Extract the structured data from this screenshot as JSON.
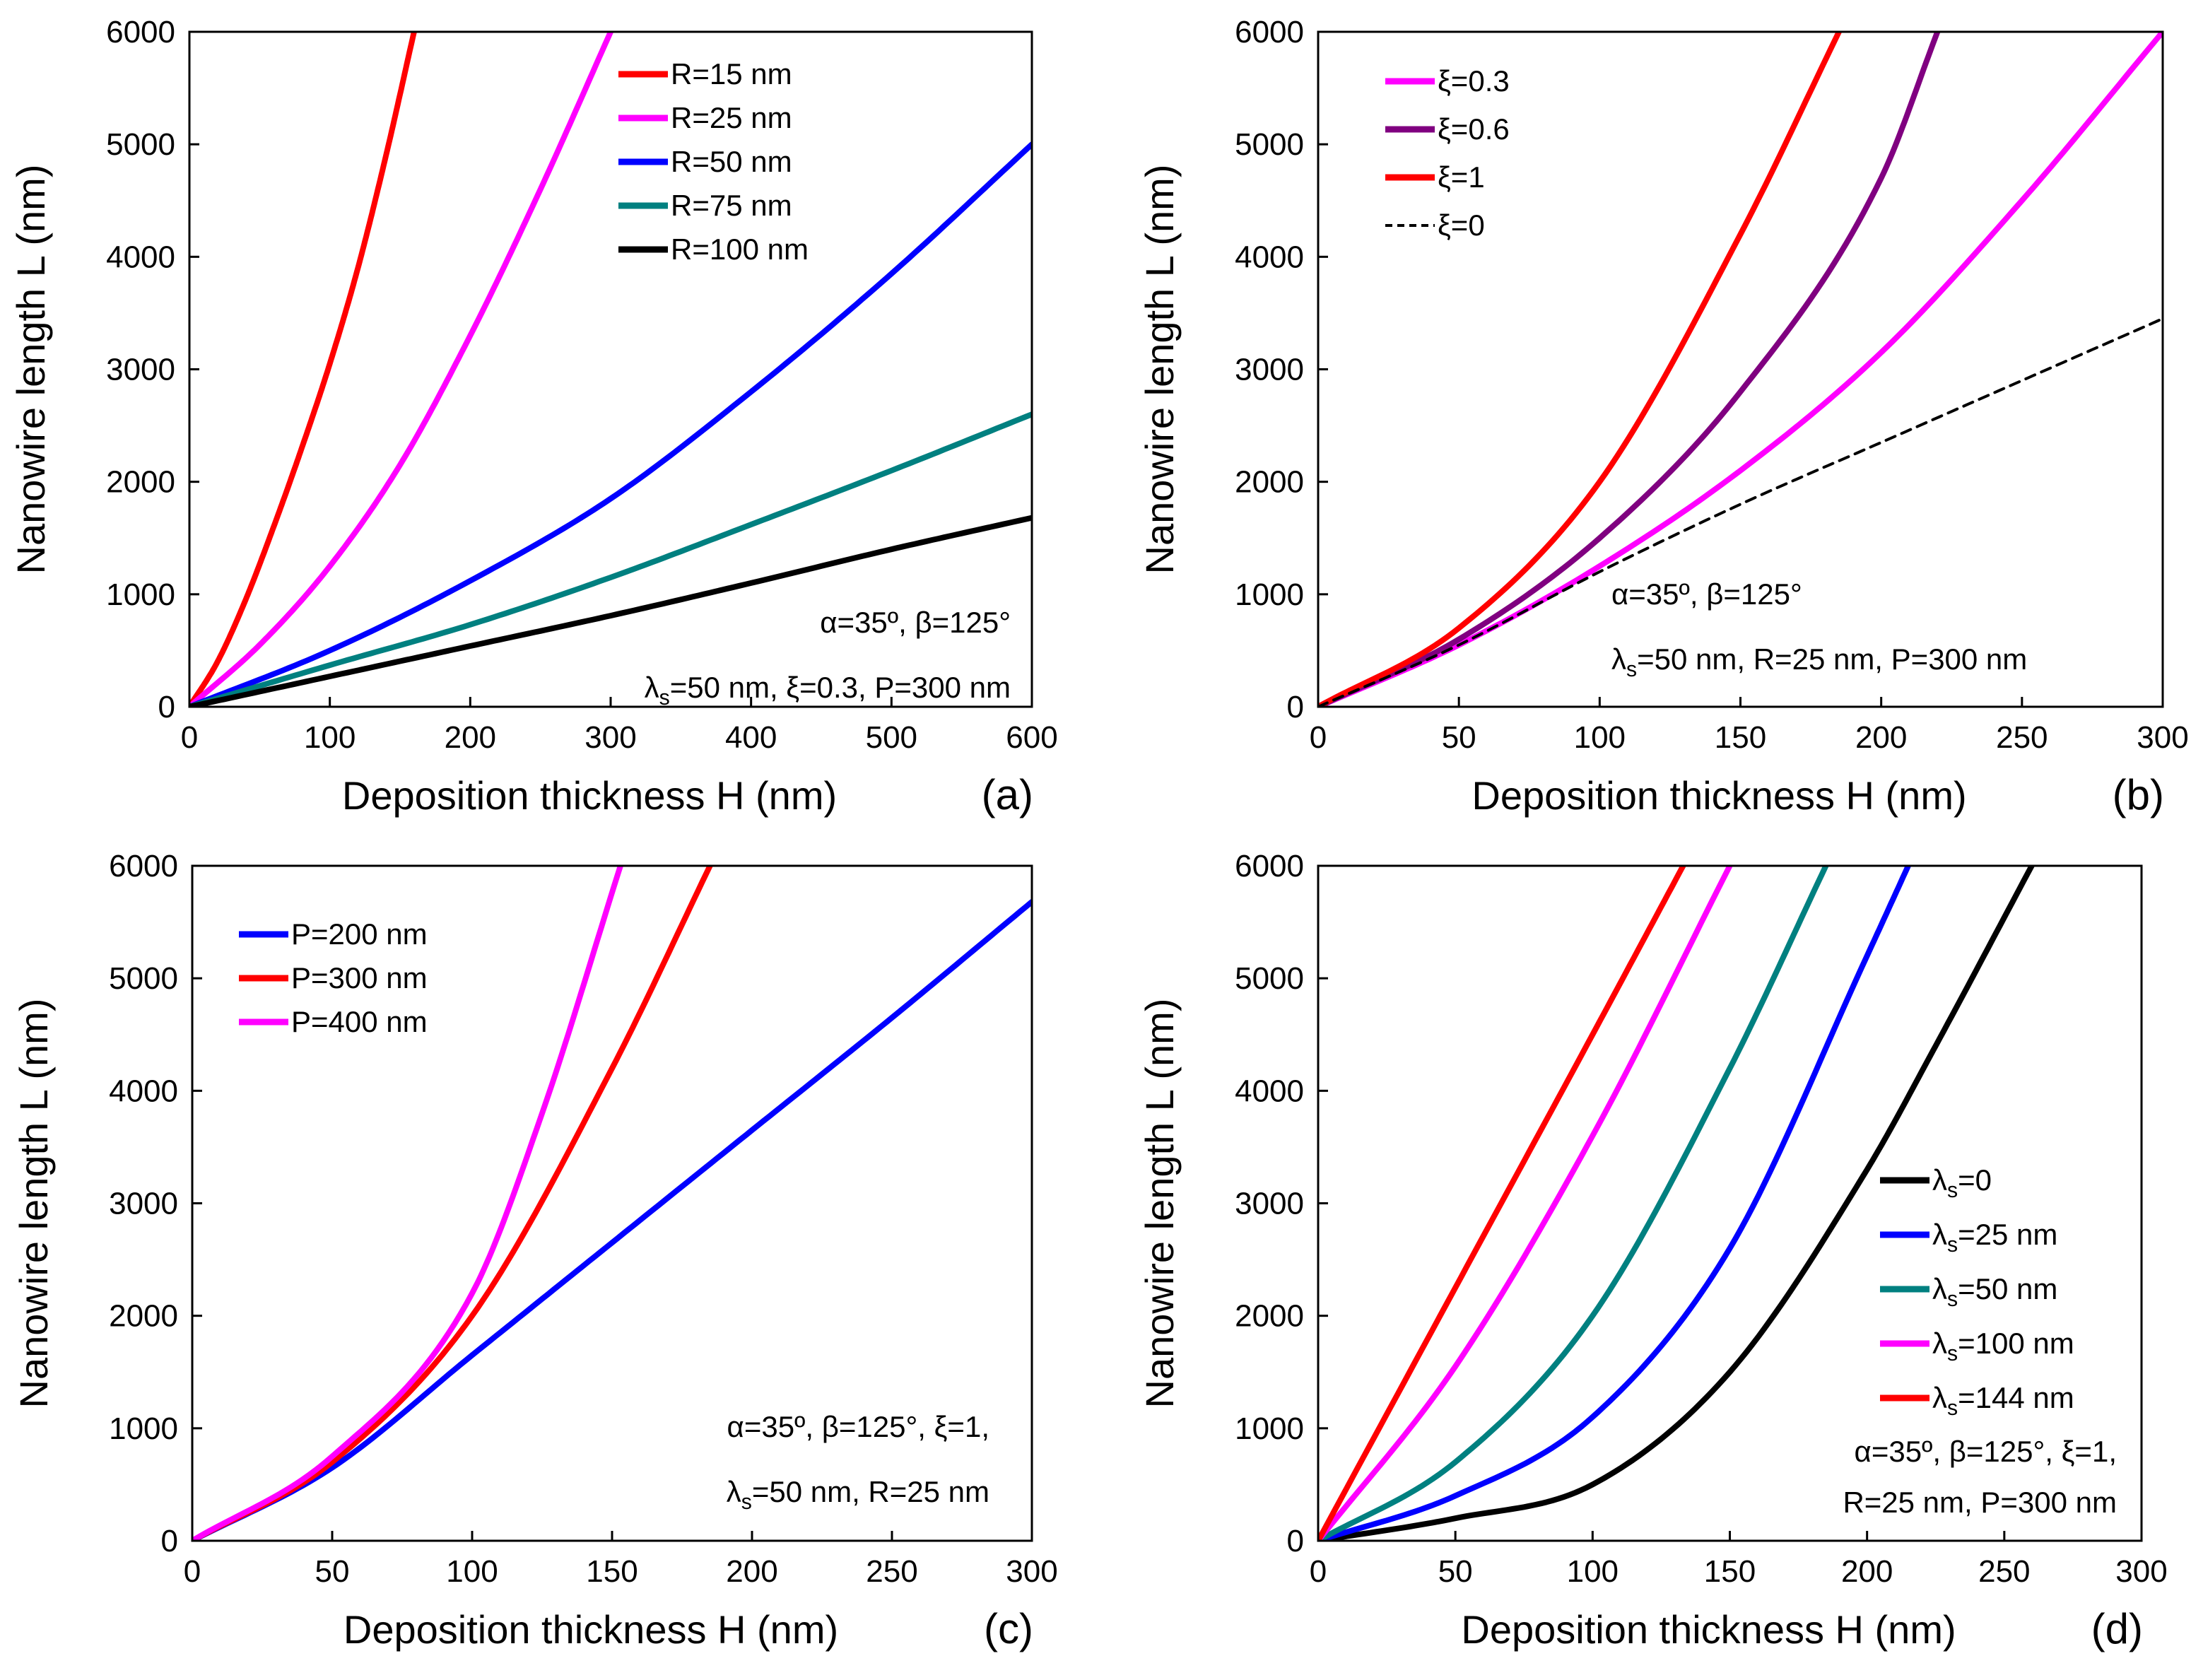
{
  "chart_data": [
    {
      "type": "line",
      "panel_label": "(a)",
      "xlabel": "Deposition thickness H (nm)",
      "ylabel": "Nanowire length L (nm)",
      "xlim": [
        0,
        600
      ],
      "ylim": [
        0,
        6000
      ],
      "xticks": [
        0,
        100,
        200,
        300,
        400,
        500,
        600
      ],
      "yticks": [
        0,
        1000,
        2000,
        3000,
        4000,
        5000,
        6000
      ],
      "legend_position": "top-right",
      "annotations": [
        "α=35º, β=125°",
        "λs=50 nm, ξ=0.3, P=300 nm"
      ],
      "series": [
        {
          "name": "R=15 nm",
          "color": "#ff0000",
          "dash": "solid",
          "x": [
            0,
            20,
            40,
            60,
            80,
            100,
            120,
            140,
            160
          ],
          "y": [
            0,
            400,
            950,
            1600,
            2300,
            3050,
            3900,
            4900,
            6000
          ]
        },
        {
          "name": "R=25 nm",
          "color": "#ff00ff",
          "dash": "solid",
          "x": [
            0,
            50,
            100,
            150,
            200,
            250,
            300
          ],
          "y": [
            0,
            550,
            1250,
            2150,
            3300,
            4600,
            6000
          ]
        },
        {
          "name": "R=50 nm",
          "color": "#0000ff",
          "dash": "solid",
          "x": [
            0,
            100,
            200,
            300,
            400,
            500,
            600
          ],
          "y": [
            0,
            500,
            1120,
            1850,
            2800,
            3850,
            5000
          ]
        },
        {
          "name": "R=75 nm",
          "color": "#008080",
          "dash": "solid",
          "x": [
            0,
            100,
            200,
            300,
            400,
            500,
            600
          ],
          "y": [
            0,
            370,
            730,
            1150,
            1620,
            2100,
            2600
          ]
        },
        {
          "name": "R=100 nm",
          "color": "#000000",
          "dash": "solid",
          "x": [
            0,
            100,
            200,
            300,
            400,
            500,
            600
          ],
          "y": [
            0,
            270,
            540,
            810,
            1100,
            1400,
            1680
          ]
        }
      ]
    },
    {
      "type": "line",
      "panel_label": "(b)",
      "xlabel": "Deposition thickness H (nm)",
      "ylabel": "Nanowire length L (nm)",
      "xlim": [
        0,
        300
      ],
      "ylim": [
        0,
        6000
      ],
      "xticks": [
        0,
        50,
        100,
        150,
        200,
        250,
        300
      ],
      "yticks": [
        0,
        1000,
        2000,
        3000,
        4000,
        5000,
        6000
      ],
      "legend_position": "top-left",
      "annotations": [
        "α=35º, β=125°",
        "λs=50 nm, R=25 nm, P=300 nm"
      ],
      "series": [
        {
          "name": "ξ=0.3",
          "color": "#ff00ff",
          "dash": "solid",
          "x": [
            0,
            50,
            100,
            150,
            200,
            250,
            300
          ],
          "y": [
            0,
            550,
            1250,
            2100,
            3150,
            4500,
            6000
          ]
        },
        {
          "name": "ξ=0.6",
          "color": "#800080",
          "dash": "solid",
          "x": [
            0,
            50,
            100,
            150,
            200,
            220
          ],
          "y": [
            0,
            600,
            1500,
            2800,
            4700,
            6000
          ]
        },
        {
          "name": "ξ=1",
          "color": "#ff0000",
          "dash": "solid",
          "x": [
            0,
            50,
            100,
            150,
            185
          ],
          "y": [
            0,
            700,
            2000,
            4200,
            6000
          ]
        },
        {
          "name": "ξ=0",
          "color": "#000000",
          "dash": "dashed",
          "x": [
            0,
            50,
            100,
            150,
            200,
            250,
            300
          ],
          "y": [
            0,
            550,
            1200,
            1800,
            2350,
            2900,
            3450
          ]
        }
      ]
    },
    {
      "type": "line",
      "panel_label": "(c)",
      "xlabel": "Deposition thickness H (nm)",
      "ylabel": "Nanowire length L (nm)",
      "xlim": [
        0,
        300
      ],
      "ylim": [
        0,
        6000
      ],
      "xticks": [
        0,
        50,
        100,
        150,
        200,
        250,
        300
      ],
      "yticks": [
        0,
        1000,
        2000,
        3000,
        4000,
        5000,
        6000
      ],
      "legend_position": "top-left",
      "annotations": [
        "α=35º, β=125°, ξ=1,",
        "λs=50 nm, R=25 nm"
      ],
      "series": [
        {
          "name": "P=200 nm",
          "color": "#0000ff",
          "dash": "solid",
          "x": [
            0,
            50,
            100,
            150,
            200,
            250,
            300
          ],
          "y": [
            0,
            650,
            1650,
            2650,
            3650,
            4650,
            5680
          ]
        },
        {
          "name": "P=300 nm",
          "color": "#ff0000",
          "dash": "solid",
          "x": [
            0,
            50,
            100,
            150,
            185
          ],
          "y": [
            0,
            700,
            2000,
            4200,
            6000
          ]
        },
        {
          "name": "P=400 nm",
          "color": "#ff00ff",
          "dash": "solid",
          "x": [
            0,
            50,
            100,
            125,
            153
          ],
          "y": [
            0,
            750,
            2200,
            3800,
            6000
          ]
        }
      ]
    },
    {
      "type": "line",
      "panel_label": "(d)",
      "xlabel": "Deposition thickness H (nm)",
      "ylabel": "Nanowire length L (nm)",
      "xlim": [
        0,
        300
      ],
      "ylim": [
        0,
        6000
      ],
      "xticks": [
        0,
        50,
        100,
        150,
        200,
        250,
        300
      ],
      "yticks": [
        0,
        1000,
        2000,
        3000,
        4000,
        5000,
        6000
      ],
      "legend_position": "bottom-right",
      "annotations": [
        "α=35º, β=125°, ξ=1,",
        "R=25 nm, P=300 nm"
      ],
      "series": [
        {
          "name": "λs=0",
          "color": "#000000",
          "dash": "solid",
          "x": [
            0,
            50,
            100,
            150,
            200,
            225,
            260
          ],
          "y": [
            0,
            200,
            500,
            1500,
            3300,
            4400,
            6000
          ]
        },
        {
          "name": "λs=25 nm",
          "color": "#0000ff",
          "dash": "solid",
          "x": [
            0,
            50,
            100,
            150,
            200,
            215
          ],
          "y": [
            0,
            400,
            1100,
            2600,
            5200,
            6000
          ]
        },
        {
          "name": "λs=50 nm",
          "color": "#008080",
          "dash": "solid",
          "x": [
            0,
            50,
            100,
            150,
            185
          ],
          "y": [
            0,
            700,
            2000,
            4200,
            6000
          ]
        },
        {
          "name": "λs=100 nm",
          "color": "#ff00ff",
          "dash": "solid",
          "x": [
            0,
            50,
            100,
            150
          ],
          "y": [
            0,
            1550,
            3600,
            6000
          ]
        },
        {
          "name": "λs=144 nm",
          "color": "#ff0000",
          "dash": "solid",
          "x": [
            0,
            50,
            100,
            133
          ],
          "y": [
            0,
            2250,
            4500,
            6000
          ]
        }
      ]
    }
  ]
}
